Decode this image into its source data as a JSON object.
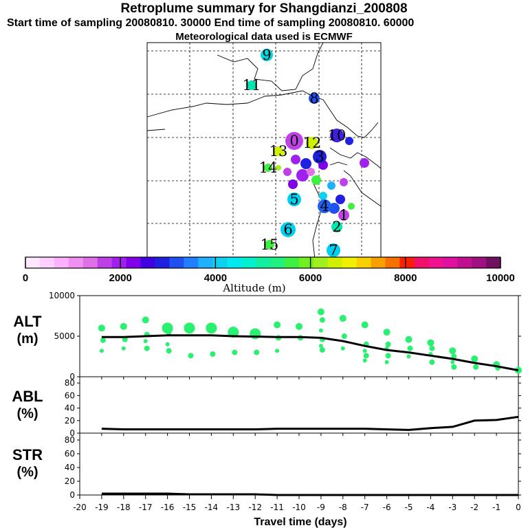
{
  "header": {
    "title": "Retroplume summary for Shangdianzi_200808",
    "subtitle": "Start time of sampling 20080810. 30000     End time of sampling 20080810. 60000",
    "met_note": "Meteorological data used is ECMWF"
  },
  "colorbar": {
    "label": "Altitude (m)",
    "ticks": [
      "0",
      "2000",
      "4000",
      "6000",
      "8000",
      "10000"
    ],
    "colors": [
      "#ffe8ff",
      "#ffd0ff",
      "#ffb0ff",
      "#f090f0",
      "#e070e8",
      "#c040e8",
      "#a020f0",
      "#8000e8",
      "#4000e0",
      "#2020e0",
      "#2050f0",
      "#2080ff",
      "#20b0ff",
      "#10d0f0",
      "#00e8f0",
      "#00f0d0",
      "#10f0a0",
      "#20f080",
      "#40f040",
      "#70f020",
      "#a0f020",
      "#d0f000",
      "#f0f000",
      "#f8d000",
      "#f8a000",
      "#f87000",
      "#f82000",
      "#f0106a",
      "#f01090",
      "#e010a0",
      "#c01090",
      "#a01080",
      "#701060"
    ]
  },
  "map_labels": [
    {
      "text": "9",
      "color": "#00d8e0"
    },
    {
      "text": "11",
      "color": "#00e8b0"
    },
    {
      "text": "8",
      "color": "#2050f0"
    },
    {
      "text": "10",
      "color": "#4020e0"
    },
    {
      "text": "12",
      "color": "#d0f000"
    },
    {
      "text": "0",
      "color": "#c040e8"
    },
    {
      "text": "13",
      "color": "#d0f000"
    },
    {
      "text": "14",
      "color": "#40f040"
    },
    {
      "text": "3",
      "color": "#2020e0"
    },
    {
      "text": "5",
      "color": "#00d0f0"
    },
    {
      "text": "6",
      "color": "#00d0f0"
    },
    {
      "text": "15",
      "color": "#40f040"
    },
    {
      "text": "7",
      "color": "#00d0f0"
    },
    {
      "text": "4",
      "color": "#2060f0"
    },
    {
      "text": "1",
      "color": "#c040e8"
    },
    {
      "text": "2",
      "color": "#00e8b0"
    }
  ],
  "panels": {
    "alt_label": [
      "ALT",
      "(m)"
    ],
    "abl_label": [
      "ABL",
      "(%)"
    ],
    "str_label": [
      "STR",
      "(%)"
    ],
    "xlabel": "Travel time (days)"
  },
  "chart_data": [
    {
      "type": "line",
      "name": "ALT",
      "title": "",
      "ylabel": "ALT (m)",
      "xlabel": "Travel time (days)",
      "xlim": [
        -20,
        0
      ],
      "ylim": [
        0,
        10000
      ],
      "yticks": [
        "0",
        "5000",
        "10000"
      ],
      "x": [
        0,
        -1,
        -2,
        -3,
        -4,
        -5,
        -6,
        -7,
        -8,
        -9,
        -10,
        -11,
        -12,
        -13,
        -14,
        -15,
        -16,
        -17,
        -18,
        -19
      ],
      "median": [
        800,
        1300,
        1700,
        2200,
        2600,
        3000,
        3300,
        3800,
        4400,
        4800,
        4900,
        4900,
        4950,
        5000,
        5100,
        5100,
        5100,
        5000,
        4900,
        4900
      ],
      "clusters": [
        {
          "x": -19,
          "y": [
            6000,
            4500,
            3200
          ]
        },
        {
          "x": -18,
          "y": [
            6200,
            4600,
            3500
          ]
        },
        {
          "x": -17,
          "y": [
            7000,
            5200,
            4400,
            3500
          ]
        },
        {
          "x": -16,
          "y": [
            6000,
            5500,
            4000,
            3200
          ]
        },
        {
          "x": -15,
          "y": [
            6000,
            2600
          ]
        },
        {
          "x": -14,
          "y": [
            6000,
            2800
          ]
        },
        {
          "x": -13,
          "y": [
            5500,
            3000
          ]
        },
        {
          "x": -12,
          "y": [
            5300,
            3000
          ]
        },
        {
          "x": -11,
          "y": [
            6400,
            4800,
            3200
          ]
        },
        {
          "x": -10,
          "y": [
            6200,
            4800
          ]
        },
        {
          "x": -9,
          "y": [
            8000,
            7000,
            5700,
            4600,
            3800,
            3300
          ]
        },
        {
          "x": -8,
          "y": [
            7200,
            5000,
            3500
          ]
        },
        {
          "x": -7,
          "y": [
            6400,
            4000,
            3200,
            2600,
            2000
          ]
        },
        {
          "x": -6,
          "y": [
            5500,
            4000,
            3500,
            2600,
            1800
          ]
        },
        {
          "x": -5,
          "y": [
            4600,
            3500,
            2500
          ]
        },
        {
          "x": -4,
          "y": [
            4200,
            3500,
            2800,
            1800
          ]
        },
        {
          "x": -3,
          "y": [
            3200,
            2500,
            1800,
            1200
          ]
        },
        {
          "x": -2,
          "y": [
            2200,
            1200
          ]
        },
        {
          "x": -1,
          "y": [
            1500,
            1100
          ]
        },
        {
          "x": 0,
          "y": [
            800
          ]
        }
      ]
    },
    {
      "type": "line",
      "name": "ABL",
      "ylabel": "ABL (%)",
      "xlim": [
        -20,
        0
      ],
      "ylim": [
        0,
        90
      ],
      "yticks": [
        "0",
        "20",
        "40",
        "60",
        "80"
      ],
      "x": [
        -19,
        -18,
        -17,
        -16,
        -15,
        -14,
        -13,
        -12,
        -11,
        -10,
        -9,
        -8,
        -7,
        -6,
        -5,
        -4,
        -3,
        -2,
        -1,
        0
      ],
      "values": [
        7,
        6,
        6,
        6,
        6,
        6,
        6,
        6,
        7,
        7,
        7,
        7,
        7,
        6,
        5,
        8,
        10,
        20,
        21,
        26
      ]
    },
    {
      "type": "line",
      "name": "STR",
      "ylabel": "STR (%)",
      "xlim": [
        -20,
        0
      ],
      "ylim": [
        0,
        90
      ],
      "yticks": [
        "0",
        "20",
        "40",
        "60",
        "80"
      ],
      "x": [
        -19,
        -18,
        -17,
        -16,
        -15,
        -14,
        -13,
        -12,
        -11,
        -10,
        -9,
        -8,
        -7,
        -6,
        -5,
        -4,
        -3,
        -2,
        -1,
        0
      ],
      "values": [
        2,
        2,
        2,
        2,
        1,
        1,
        1,
        1,
        0,
        0,
        0,
        0,
        0,
        0,
        0,
        0,
        0,
        0,
        0,
        0
      ],
      "xticks": [
        "-20",
        "-19",
        "-18",
        "-17",
        "-16",
        "-15",
        "-14",
        "-13",
        "-12",
        "-11",
        "-10",
        "-9",
        "-8",
        "-7",
        "-6",
        "-5",
        "-4",
        "-3",
        "-2",
        "-1",
        "0"
      ]
    }
  ]
}
